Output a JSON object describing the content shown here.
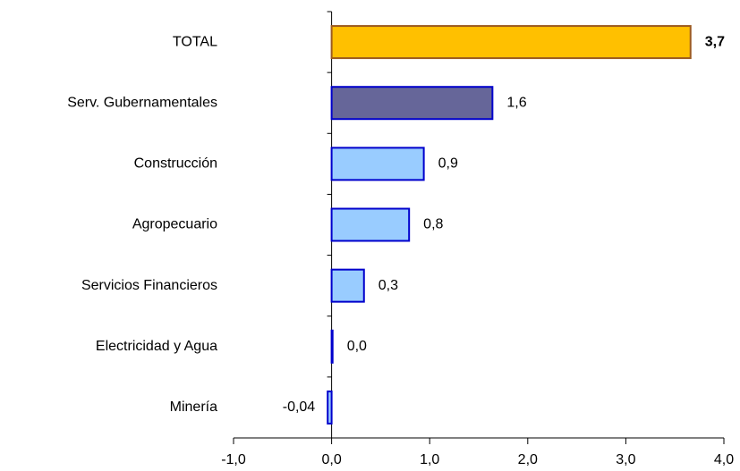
{
  "chart_data": {
    "type": "hbar",
    "categories": [
      "TOTAL",
      "Serv. Gubernamentales",
      "Construcción",
      "Agropecuario",
      "Servicios Financieros",
      "Electricidad y Agua",
      "Minería"
    ],
    "values": [
      3.66,
      1.64,
      0.94,
      0.79,
      0.33,
      0.01,
      -0.04
    ],
    "value_labels": [
      "3,7",
      "1,6",
      "0,9",
      "0,8",
      "0,3",
      "0,0",
      "-0,04"
    ],
    "colors": [
      "#ffc000",
      "#666699",
      "#99ccff",
      "#99ccff",
      "#99ccff",
      "#99ccff",
      "#99ccff"
    ],
    "edge_colors": [
      "#9c5a1f",
      "#0000cc",
      "#0000cc",
      "#0000cc",
      "#0000cc",
      "#0000cc",
      "#0000cc"
    ],
    "xlim": [
      -1,
      4
    ],
    "xticks": [
      {
        "value": -1,
        "label": "-1,0"
      },
      {
        "value": 0,
        "label": "0,0"
      },
      {
        "value": 1,
        "label": "1,0"
      },
      {
        "value": 2,
        "label": "2,0"
      },
      {
        "value": 3,
        "label": "3,0"
      },
      {
        "value": 4,
        "label": "4,0"
      }
    ],
    "grid": false
  }
}
